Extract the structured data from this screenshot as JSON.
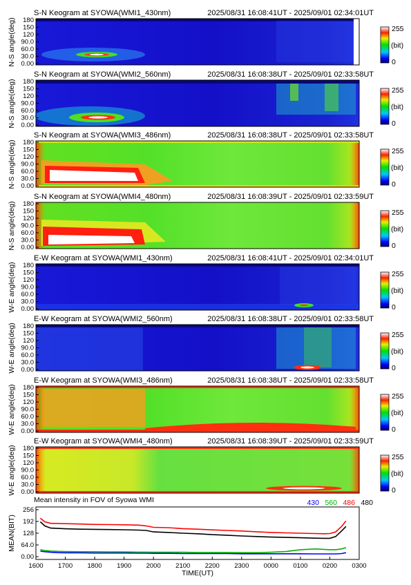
{
  "colorbar": {
    "max_label": "255",
    "unit_label": "(bit)",
    "min_label": "0"
  },
  "keogram_y_ticks": [
    "180",
    "150",
    "120",
    "90.0",
    "60.0",
    "30.0",
    "0.00"
  ],
  "keograms": [
    {
      "title": "S-N Keogram at SYOWA(WMI1_430nm)",
      "time_range": "2025/08/31 16:08:41UT - 2025/09/01 02:34:01UT",
      "ylabel": "N-S angle(deg)"
    },
    {
      "title": "S-N Keogram at SYOWA(WMI2_560nm)",
      "time_range": "2025/08/31 16:08:38UT - 2025/09/01 02:33:58UT",
      "ylabel": "N-S angle(deg)"
    },
    {
      "title": "S-N Keogram at SYOWA(WMI3_486nm)",
      "time_range": "2025/08/31 16:08:38UT - 2025/09/01 02:33:58UT",
      "ylabel": "N-S angle(deg)"
    },
    {
      "title": "S-N Keogram at SYOWA(WMI4_480nm)",
      "time_range": "2025/08/31 16:08:39UT - 2025/09/01 02:33:59UT",
      "ylabel": "N-S angle(deg)"
    },
    {
      "title": "E-W Keogram at SYOWA(WMI1_430nm)",
      "time_range": "2025/08/31 16:08:41UT - 2025/09/01 02:34:01UT",
      "ylabel": "W-E angle(deg)"
    },
    {
      "title": "E-W Keogram at SYOWA(WMI2_560nm)",
      "time_range": "2025/08/31 16:08:38UT - 2025/09/01 02:33:58UT",
      "ylabel": "W-E angle(deg)"
    },
    {
      "title": "E-W Keogram at SYOWA(WMI3_486nm)",
      "time_range": "2025/08/31 16:08:38UT - 2025/09/01 02:33:58UT",
      "ylabel": "W-E angle(deg)"
    },
    {
      "title": "E-W Keogram at SYOWA(WMI4_480nm)",
      "time_range": "2025/08/31 16:08:39UT - 2025/09/01 02:33:59UT",
      "ylabel": "W-E angle(deg)"
    }
  ],
  "chart_data": {
    "type": "line",
    "title": "Mean intensity in FOV of Syowa WMI",
    "xlabel": "TIME(UT)",
    "ylabel": "MEAN(BIT)",
    "x_tick_labels": [
      "1600",
      "1700",
      "1800",
      "1900",
      "2000",
      "2100",
      "2200",
      "2300",
      "0000",
      "0100",
      "0200",
      "0300"
    ],
    "y_tick_labels": [
      "256",
      "192",
      "128",
      "64.0",
      "0.00"
    ],
    "xlim": [
      16.0,
      27.0
    ],
    "ylim": [
      0,
      256
    ],
    "legend_position": "top-right",
    "x": [
      16.15,
      16.3,
      16.5,
      16.75,
      17.0,
      17.5,
      18.0,
      18.5,
      19.0,
      19.5,
      19.75,
      20.0,
      20.5,
      21.0,
      21.5,
      22.0,
      22.5,
      23.0,
      23.5,
      24.0,
      24.5,
      25.0,
      25.5,
      25.8,
      26.0,
      26.2,
      26.4,
      26.55
    ],
    "series": [
      {
        "name": "430",
        "color": "#0000ff",
        "values": [
          30,
          27,
          24,
          22,
          21,
          21,
          20,
          20,
          20,
          19,
          19,
          18,
          18,
          17,
          17,
          17,
          17,
          16,
          16,
          16,
          16,
          16,
          15,
          15,
          15,
          15,
          17,
          22
        ]
      },
      {
        "name": "560",
        "color": "#00b000",
        "values": [
          38,
          34,
          31,
          29,
          28,
          27,
          27,
          26,
          26,
          25,
          25,
          24,
          24,
          24,
          23,
          23,
          23,
          22,
          22,
          24,
          28,
          38,
          42,
          40,
          38,
          38,
          42,
          50
        ]
      },
      {
        "name": "486",
        "color": "#ff0000",
        "values": [
          210,
          190,
          182,
          181,
          180,
          178,
          176,
          175,
          174,
          172,
          168,
          160,
          158,
          153,
          150,
          146,
          143,
          140,
          136,
          132,
          130,
          128,
          126,
          125,
          126,
          135,
          165,
          195
        ]
      },
      {
        "name": "480",
        "color": "#000000",
        "values": [
          190,
          168,
          156,
          154,
          152,
          150,
          149,
          148,
          147,
          145,
          143,
          135,
          132,
          128,
          125,
          120,
          117,
          113,
          110,
          107,
          105,
          103,
          101,
          100,
          100,
          110,
          140,
          165
        ]
      }
    ]
  }
}
